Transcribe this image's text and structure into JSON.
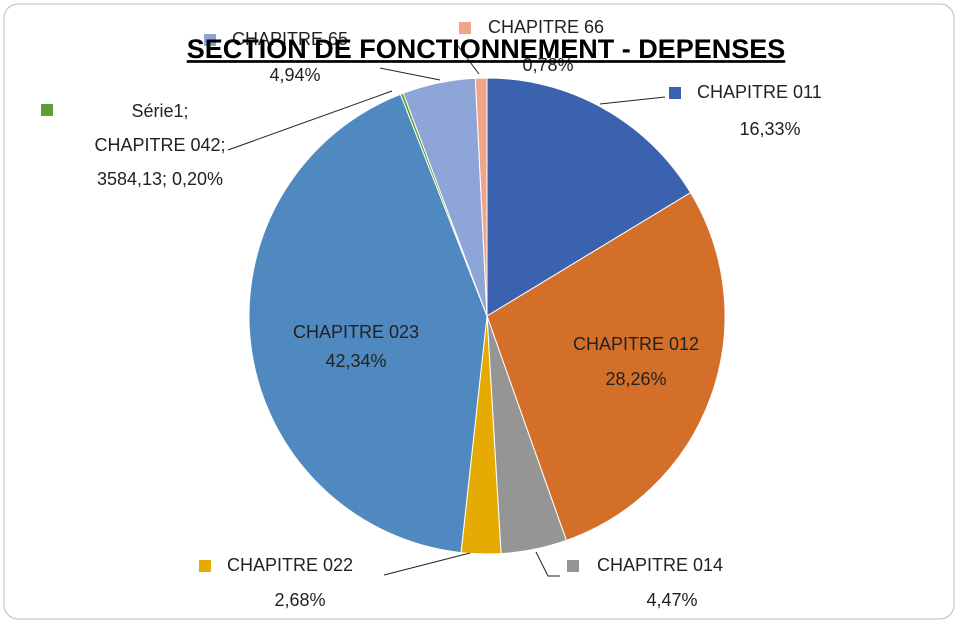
{
  "chart_data": {
    "type": "pie",
    "title": "SECTION DE FONCTIONNEMENT - DEPENSES",
    "categories": [
      "CHAPITRE 011",
      "CHAPITRE 012",
      "CHAPITRE 014",
      "CHAPITRE 022",
      "CHAPITRE 023",
      "CHAPITRE 042",
      "CHAPITRE 65",
      "CHAPITRE 66"
    ],
    "values": [
      16.33,
      28.26,
      4.47,
      2.68,
      42.34,
      0.2,
      4.94,
      0.78
    ],
    "value_labels": [
      "16,33%",
      "28,26%",
      "4,47%",
      "2,68%",
      "42,34%",
      "Série1; CHAPITRE 042; 3584,13; 0,20%",
      "4,94%",
      "0,78%"
    ],
    "colors": [
      "#3a62ae",
      "#d46f2a",
      "#959595",
      "#e6ab02",
      "#4f89c0",
      "#5e9d38",
      "#8ea5d8",
      "#f0a58b"
    ]
  }
}
